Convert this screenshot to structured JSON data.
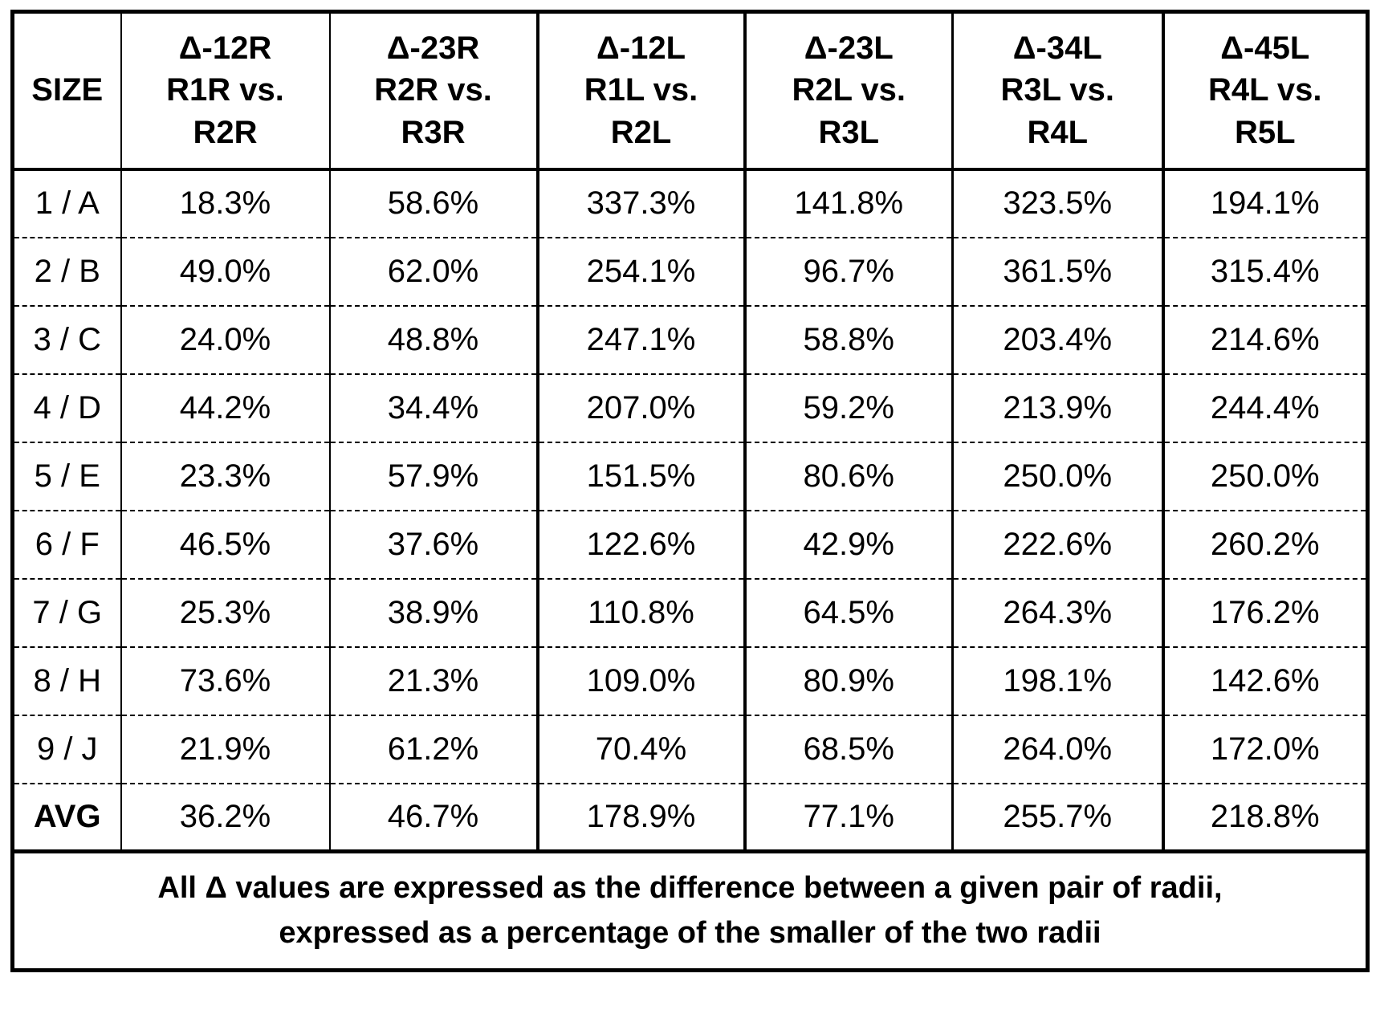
{
  "table": {
    "columns": [
      "SIZE",
      "Δ-12R\nR1R vs.\nR2R",
      "Δ-23R\nR2R vs.\nR3R",
      "Δ-12L\nR1L vs.\nR2L",
      "Δ-23L\nR2L vs.\nR3L",
      "Δ-34L\nR3L vs.\nR4L",
      "Δ-45L\nR4L vs.\nR5L"
    ],
    "rows": [
      {
        "size": "1 / A",
        "values": [
          "18.3%",
          "58.6%",
          "337.3%",
          "141.8%",
          "323.5%",
          "194.1%"
        ],
        "bold_label": false
      },
      {
        "size": "2 / B",
        "values": [
          "49.0%",
          "62.0%",
          "254.1%",
          "96.7%",
          "361.5%",
          "315.4%"
        ],
        "bold_label": false
      },
      {
        "size": "3 / C",
        "values": [
          "24.0%",
          "48.8%",
          "247.1%",
          "58.8%",
          "203.4%",
          "214.6%"
        ],
        "bold_label": false
      },
      {
        "size": "4 / D",
        "values": [
          "44.2%",
          "34.4%",
          "207.0%",
          "59.2%",
          "213.9%",
          "244.4%"
        ],
        "bold_label": false
      },
      {
        "size": "5 / E",
        "values": [
          "23.3%",
          "57.9%",
          "151.5%",
          "80.6%",
          "250.0%",
          "250.0%"
        ],
        "bold_label": false
      },
      {
        "size": "6 / F",
        "values": [
          "46.5%",
          "37.6%",
          "122.6%",
          "42.9%",
          "222.6%",
          "260.2%"
        ],
        "bold_label": false
      },
      {
        "size": "7 / G",
        "values": [
          "25.3%",
          "38.9%",
          "110.8%",
          "64.5%",
          "264.3%",
          "176.2%"
        ],
        "bold_label": false
      },
      {
        "size": "8 / H",
        "values": [
          "73.6%",
          "21.3%",
          "109.0%",
          "80.9%",
          "198.1%",
          "142.6%"
        ],
        "bold_label": false
      },
      {
        "size": "9 / J",
        "values": [
          "21.9%",
          "61.2%",
          "70.4%",
          "68.5%",
          "264.0%",
          "172.0%"
        ],
        "bold_label": false
      },
      {
        "size": "AVG",
        "values": [
          "36.2%",
          "46.7%",
          "178.9%",
          "77.1%",
          "255.7%",
          "218.8%"
        ],
        "bold_label": true
      }
    ],
    "footnote": "All Δ values are expressed as the difference between a given pair of radii,\nexpressed as a percentage of the smaller of the two radii"
  }
}
